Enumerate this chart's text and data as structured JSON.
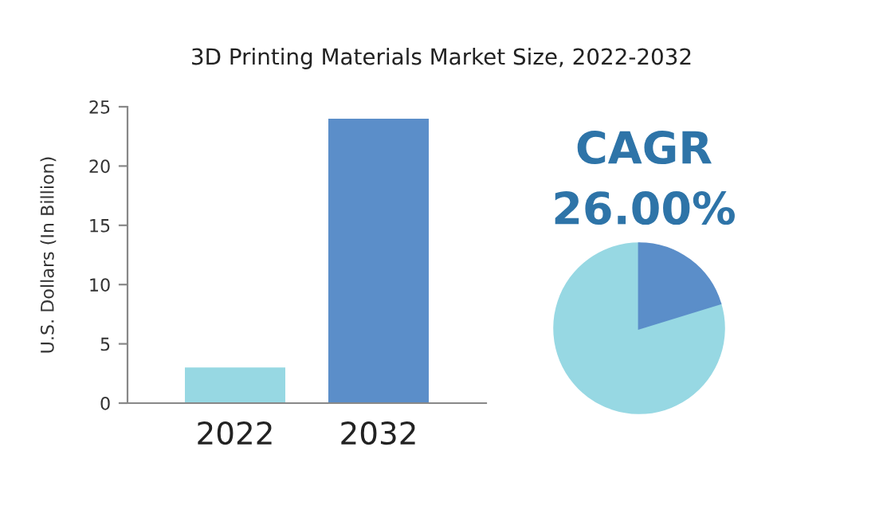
{
  "chart_data": {
    "type": "bar",
    "title": "3D Printing Materials Market Size, 2022-2032",
    "ylabel": "U.S. Dollars (In Billion)",
    "categories": [
      "2022",
      "2032"
    ],
    "values": [
      3.0,
      24.0
    ],
    "colors": [
      "#97d8e3",
      "#5b8ec9"
    ],
    "ylim": [
      0,
      25
    ],
    "yticks": [
      0,
      5,
      10,
      15,
      20,
      25
    ],
    "grid": false,
    "legend": false,
    "annotations": [
      "CAGR",
      "26.00%"
    ]
  }
}
